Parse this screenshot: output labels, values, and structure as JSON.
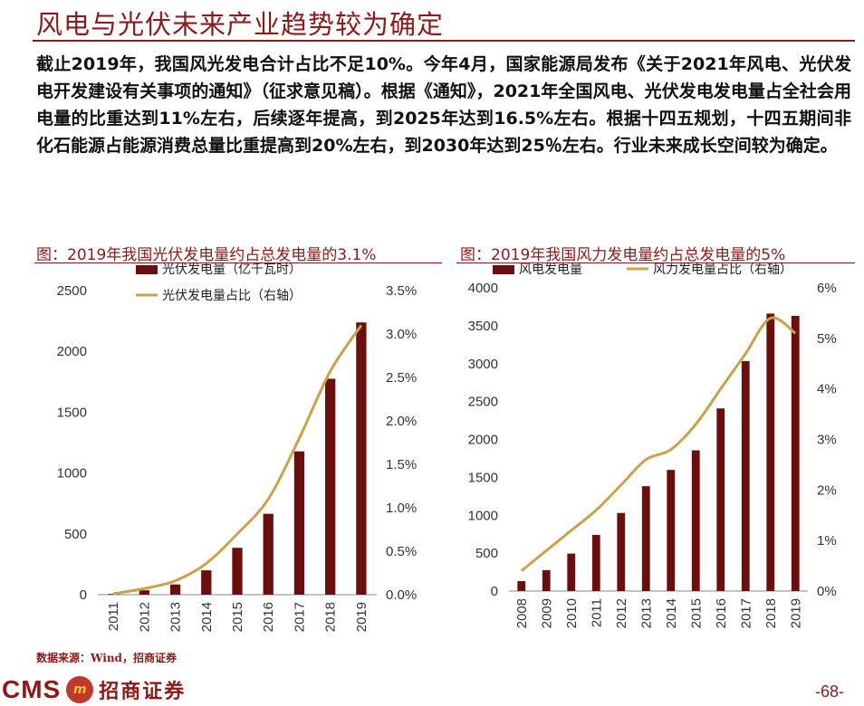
{
  "header": {
    "title": "风电与光伏未来产业趋势较为确定"
  },
  "body": {
    "paragraph": "截止2019年，我国风光发电合计占比不足10%。今年4月，国家能源局发布《关于2021年风电、光伏发电开发建设有关事项的通知》（征求意见稿）。根据《通知》，2021年全国风电、光伏发电发电量占全社会用电量的比重达到11%左右，后续逐年提高，到2025年达到16.5%左右。根据十四五规划，十四五期间非化石能源占能源消费总量比重提高到20%左右，到2030年达到25％左右。行业未来成长空间较为确定。"
  },
  "source": "数据来源：Wind，招商证券",
  "footer": {
    "cms": "CMS",
    "badge": "m",
    "brand": "招商证券",
    "page": "-68-"
  },
  "colors": {
    "bar": "#6b0e0e",
    "line": "#c9a24a",
    "accent": "#8b1a1a"
  },
  "chart_data": [
    {
      "type": "bar",
      "title": "图：2019年我国光伏发电量约占总发电量的3.1%",
      "categories": [
        "2011",
        "2012",
        "2013",
        "2014",
        "2015",
        "2016",
        "2017",
        "2018",
        "2019"
      ],
      "series": [
        {
          "name": "光伏发电量（亿千瓦时）",
          "type": "bar",
          "axis": "left",
          "values": [
            6,
            36,
            84,
            200,
            385,
            665,
            1178,
            1775,
            2238
          ]
        },
        {
          "name": "光伏发电量占比（右轴）",
          "type": "line",
          "axis": "right",
          "values": [
            0.0001,
            0.0007,
            0.0016,
            0.0036,
            0.007,
            0.011,
            0.018,
            0.0257,
            0.031
          ]
        }
      ],
      "ylim_left": [
        0,
        2500
      ],
      "yticks_left": [
        "0",
        "500",
        "1000",
        "1500",
        "2000",
        "2500"
      ],
      "ylim_right": [
        0,
        0.035
      ],
      "yticks_right": [
        "0.0%",
        "0.5%",
        "1.0%",
        "1.5%",
        "2.0%",
        "2.5%",
        "3.0%",
        "3.5%"
      ],
      "legend_position": "top-left"
    },
    {
      "type": "bar",
      "title": "图：2019年我国风力发电量约占总发电量的5%",
      "categories": [
        "2008",
        "2009",
        "2010",
        "2011",
        "2012",
        "2013",
        "2014",
        "2015",
        "2016",
        "2017",
        "2018",
        "2019"
      ],
      "series": [
        {
          "name": "风电发电量",
          "type": "bar",
          "axis": "left",
          "values": [
            131,
            276,
            494,
            741,
            1030,
            1383,
            1598,
            1856,
            2409,
            3034,
            3660,
            3630
          ]
        },
        {
          "name": "风力发电量占比（右轴）",
          "type": "line",
          "axis": "right",
          "values": [
            0.004,
            0.008,
            0.012,
            0.016,
            0.021,
            0.026,
            0.028,
            0.033,
            0.04,
            0.047,
            0.054,
            0.051
          ]
        }
      ],
      "ylim_left": [
        0,
        4000
      ],
      "yticks_left": [
        "0",
        "500",
        "1000",
        "1500",
        "2000",
        "2500",
        "3000",
        "3500",
        "4000"
      ],
      "ylim_right": [
        0,
        0.06
      ],
      "yticks_right": [
        "0%",
        "1%",
        "2%",
        "3%",
        "4%",
        "5%",
        "6%"
      ],
      "legend_position": "top"
    }
  ]
}
